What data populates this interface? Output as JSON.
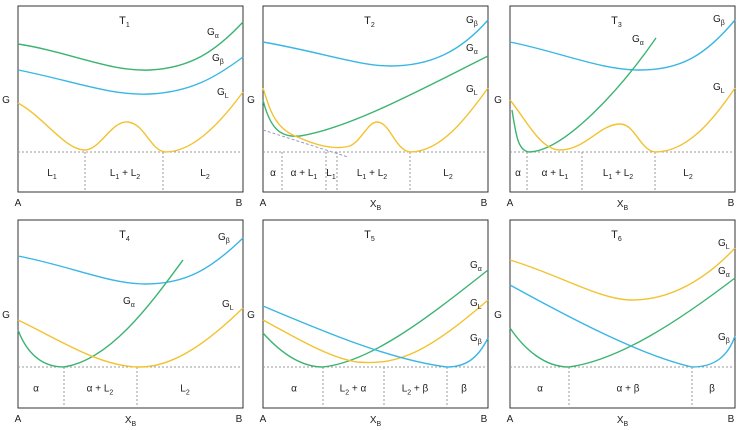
{
  "figure": {
    "colors": {
      "G_alpha": "#3cb371",
      "G_beta": "#39b6e3",
      "G_L": "#f2c230",
      "guide": "#999999",
      "frame": "#333333"
    },
    "axis": {
      "y_label": "G",
      "x_label_main": "X",
      "x_label_sub": "B",
      "left_end": "A",
      "right_end": "B"
    },
    "panels": [
      {
        "title": "T",
        "title_sub": "1",
        "curve_labels": [
          {
            "curve": "G_alpha",
            "main": "G",
            "sub": "α"
          },
          {
            "curve": "G_beta",
            "main": "G",
            "sub": "β"
          },
          {
            "curve": "G_L",
            "main": "G",
            "sub": "L"
          }
        ],
        "regions": [
          {
            "label": "L",
            "sub": "1",
            "rest": ""
          },
          {
            "label": "L",
            "sub": "1",
            "rest": " + L",
            "sub2": "2"
          },
          {
            "label": "L",
            "sub": "2",
            "rest": ""
          }
        ],
        "show_x_label": false
      },
      {
        "title": "T",
        "title_sub": "2",
        "curve_labels": [
          {
            "curve": "G_beta",
            "main": "G",
            "sub": "β"
          },
          {
            "curve": "G_alpha",
            "main": "G",
            "sub": "α"
          },
          {
            "curve": "G_L",
            "main": "G",
            "sub": "L"
          }
        ],
        "regions": [
          {
            "label": "α",
            "sub": "",
            "rest": ""
          },
          {
            "label": "α + L",
            "sub": "1",
            "rest": ""
          },
          {
            "label": "L",
            "sub": "1",
            "rest": ""
          },
          {
            "label": "L",
            "sub": "1",
            "rest": " + L",
            "sub2": "2"
          },
          {
            "label": "L",
            "sub": "2",
            "rest": ""
          }
        ],
        "show_x_label": true
      },
      {
        "title": "T",
        "title_sub": "3",
        "curve_labels": [
          {
            "curve": "G_alpha",
            "main": "G",
            "sub": "α"
          },
          {
            "curve": "G_beta",
            "main": "G",
            "sub": "β"
          },
          {
            "curve": "G_L",
            "main": "G",
            "sub": "L"
          }
        ],
        "regions": [
          {
            "label": "α",
            "sub": "",
            "rest": ""
          },
          {
            "label": "α + L",
            "sub": "1",
            "rest": ""
          },
          {
            "label": "L",
            "sub": "1",
            "rest": " + L",
            "sub2": "2"
          },
          {
            "label": "L",
            "sub": "2",
            "rest": ""
          }
        ],
        "show_x_label": true
      },
      {
        "title": "T",
        "title_sub": "4",
        "curve_labels": [
          {
            "curve": "G_beta",
            "main": "G",
            "sub": "β"
          },
          {
            "curve": "G_alpha",
            "main": "G",
            "sub": "α"
          },
          {
            "curve": "G_L",
            "main": "G",
            "sub": "L"
          }
        ],
        "regions": [
          {
            "label": "α",
            "sub": "",
            "rest": ""
          },
          {
            "label": "α + L",
            "sub": "2",
            "rest": ""
          },
          {
            "label": "L",
            "sub": "2",
            "rest": ""
          }
        ],
        "show_x_label": true
      },
      {
        "title": "T",
        "title_sub": "5",
        "curve_labels": [
          {
            "curve": "G_alpha",
            "main": "G",
            "sub": "α"
          },
          {
            "curve": "G_L",
            "main": "G",
            "sub": "L"
          },
          {
            "curve": "G_beta",
            "main": "G",
            "sub": "β"
          }
        ],
        "regions": [
          {
            "label": "α",
            "sub": "",
            "rest": ""
          },
          {
            "label": "L",
            "sub": "2",
            "rest": " + α"
          },
          {
            "label": "L",
            "sub": "2",
            "rest": " + β"
          },
          {
            "label": "β",
            "sub": "",
            "rest": ""
          }
        ],
        "show_x_label": true
      },
      {
        "title": "T",
        "title_sub": "6",
        "curve_labels": [
          {
            "curve": "G_L",
            "main": "G",
            "sub": "L"
          },
          {
            "curve": "G_alpha",
            "main": "G",
            "sub": "α"
          },
          {
            "curve": "G_beta",
            "main": "G",
            "sub": "β"
          }
        ],
        "regions": [
          {
            "label": "α",
            "sub": "",
            "rest": ""
          },
          {
            "label": "α + β",
            "sub": "",
            "rest": ""
          },
          {
            "label": "β",
            "sub": "",
            "rest": ""
          }
        ],
        "show_x_label": true
      }
    ]
  }
}
